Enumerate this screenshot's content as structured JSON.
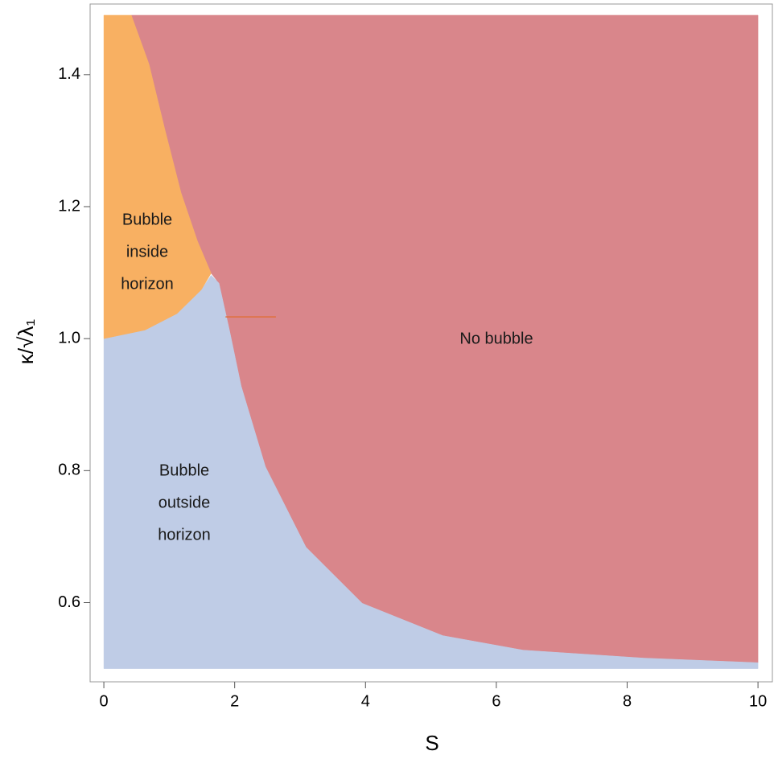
{
  "chart_data": {
    "type": "region",
    "xlabel": "S",
    "ylabel": "κ/√λ₁",
    "xlim": [
      -0.21,
      10.22
    ],
    "ylim": [
      0.48,
      1.507
    ],
    "xticks": [
      0,
      2,
      4,
      6,
      8,
      10
    ],
    "yticks": [
      0.6,
      0.8,
      {
        "value": 1,
        "label": "1.0"
      },
      1.2,
      1.4
    ],
    "regions": [
      {
        "color": "#d9868b",
        "x": [
          0.42,
          10,
          10,
          8.25,
          6.41,
          5.18,
          3.95,
          3.09,
          2.47,
          2.1,
          1.92,
          1.76,
          1.64,
          1.43,
          1.18,
          0.93,
          0.69
        ],
        "y": [
          1.49,
          1.49,
          0.509,
          0.516,
          0.528,
          0.55,
          0.599,
          0.684,
          0.806,
          0.928,
          1.013,
          1.084,
          1.099,
          1.148,
          1.221,
          1.318,
          1.416
        ]
      },
      {
        "color": "#bfcce6",
        "x": [
          0,
          0.63,
          1.12,
          1.49,
          1.64,
          1.76,
          1.92,
          2.1,
          2.47,
          3.09,
          3.95,
          5.18,
          6.41,
          8.25,
          10,
          10,
          0
        ],
        "y": [
          1.0,
          1.013,
          1.038,
          1.074,
          1.096,
          1.084,
          1.013,
          0.928,
          0.806,
          0.684,
          0.599,
          0.55,
          0.528,
          0.516,
          0.509,
          0.5,
          0.5
        ]
      },
      {
        "color": "#f8b062",
        "x": [
          0,
          0,
          0.42,
          0.69,
          0.93,
          1.18,
          1.43,
          1.64,
          1.49,
          1.12,
          0.63
        ],
        "y": [
          1.0,
          1.49,
          1.49,
          1.416,
          1.318,
          1.221,
          1.148,
          1.099,
          1.074,
          1.038,
          1.013
        ]
      }
    ],
    "stray_line": {
      "color": "#e0703a",
      "x": [
        1.86,
        2.63
      ],
      "y": [
        1.033,
        1.033
      ]
    },
    "annotations": [
      [
        "Bubble",
        "inside",
        "horizon"
      ],
      [
        "Bubble",
        "outside",
        "horizon"
      ],
      [
        "No bubble"
      ]
    ]
  }
}
